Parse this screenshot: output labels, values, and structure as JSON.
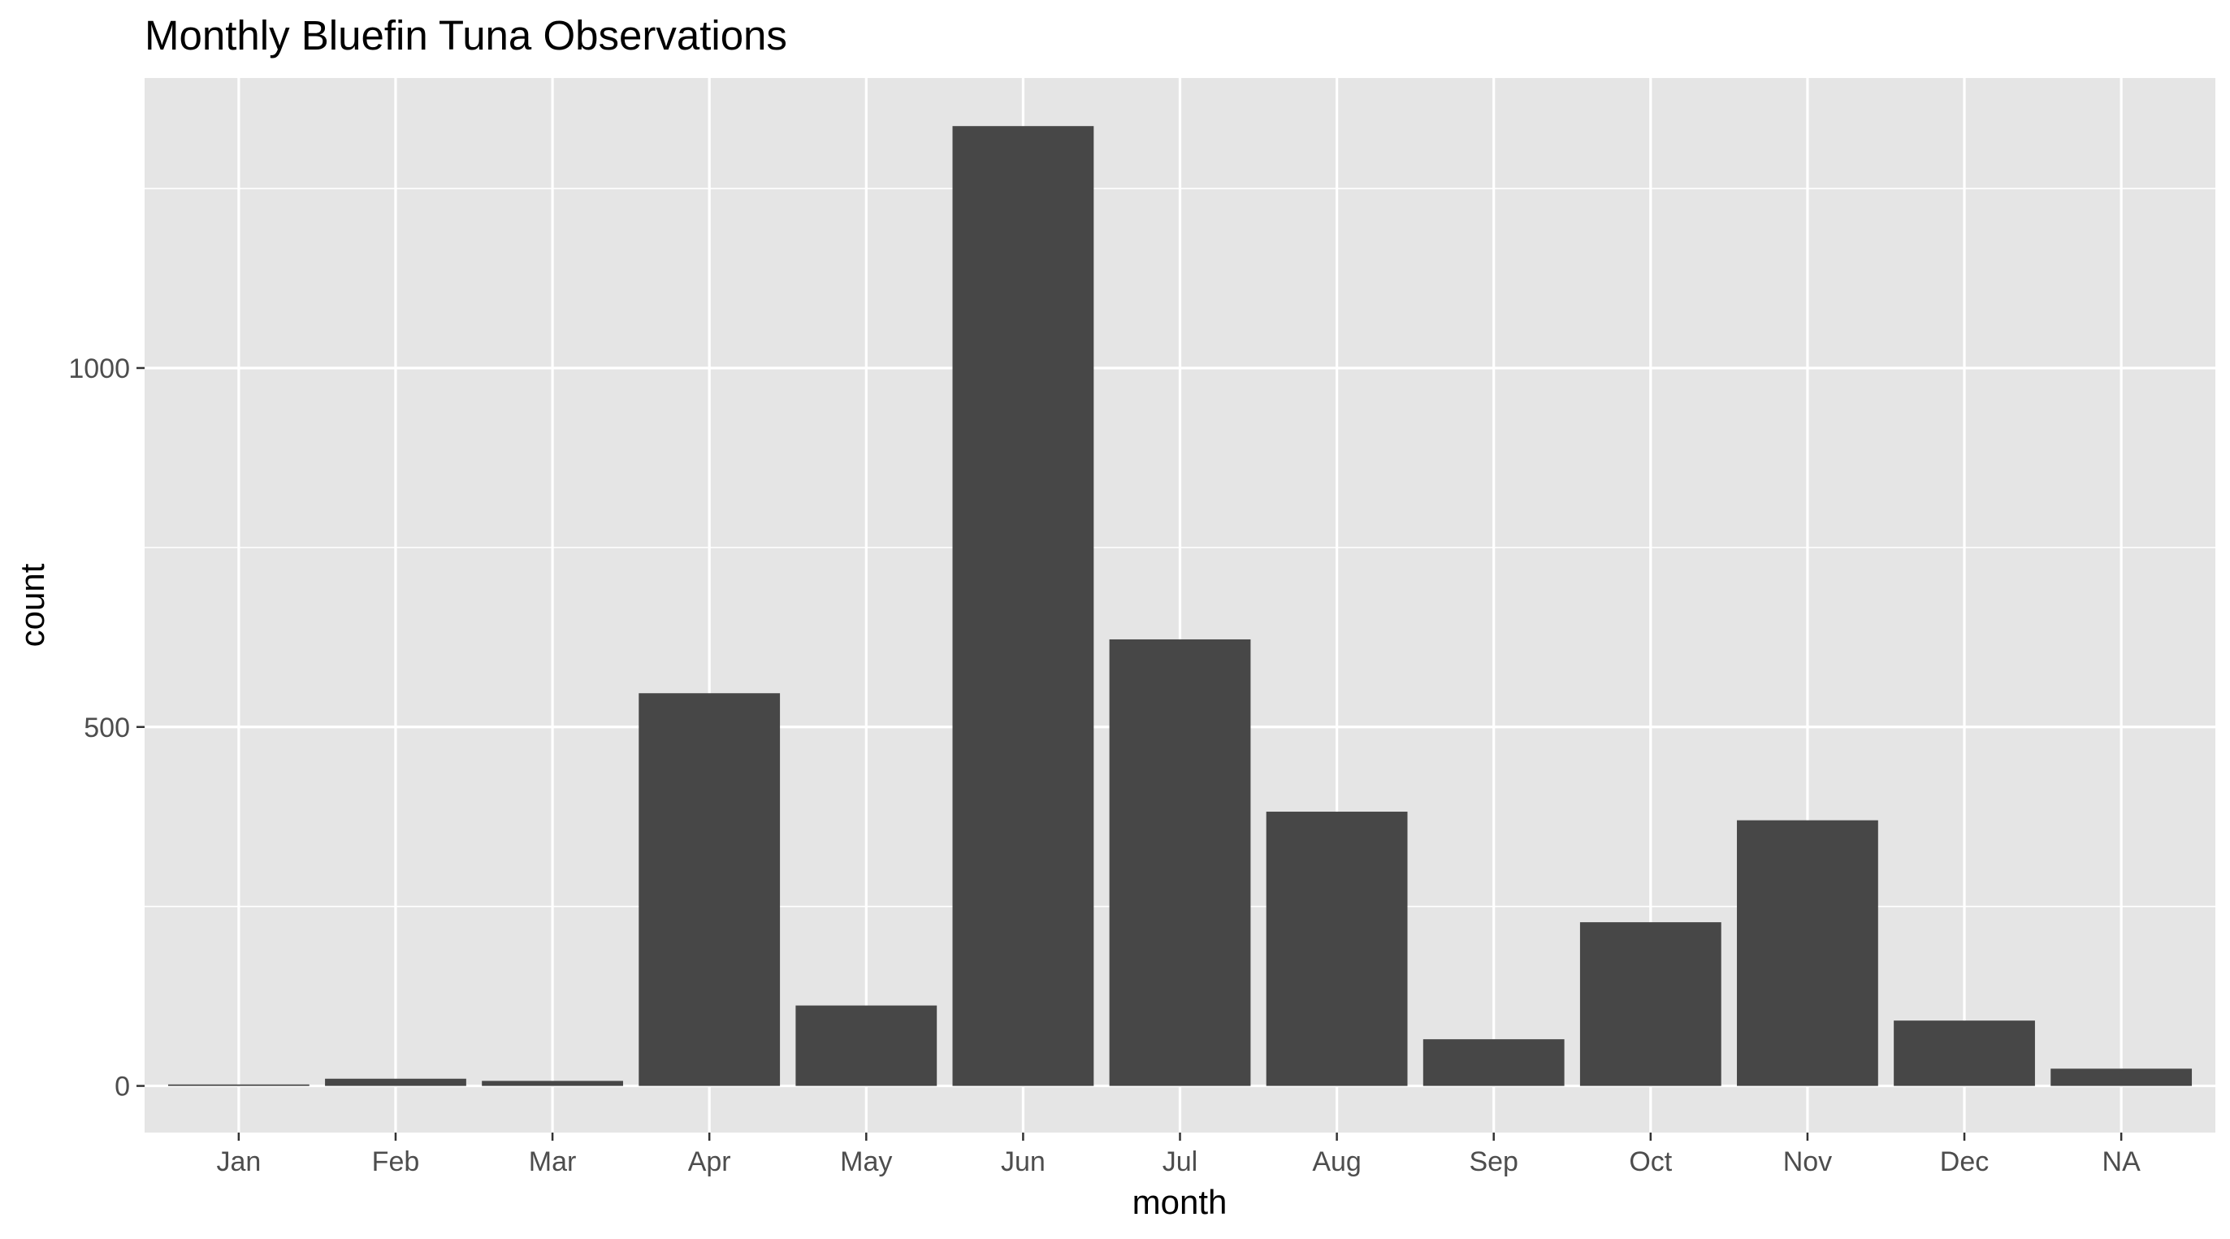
{
  "chart_data": {
    "type": "bar",
    "title": "Monthly Bluefin Tuna Observations",
    "xlabel": "month",
    "ylabel": "count",
    "categories": [
      "Jan",
      "Feb",
      "Mar",
      "Apr",
      "May",
      "Jun",
      "Jul",
      "Aug",
      "Sep",
      "Oct",
      "Nov",
      "Dec",
      "NA"
    ],
    "values": [
      2,
      10,
      7,
      547,
      112,
      1337,
      622,
      382,
      65,
      228,
      370,
      91,
      24
    ],
    "yticks": [
      0,
      500,
      1000
    ],
    "yticks_minor": [
      250,
      750,
      1250
    ],
    "ytick_labels": [
      "0",
      "500",
      "1000"
    ],
    "ylim": [
      -65,
      1404
    ],
    "grid": true,
    "legend": "none",
    "colors": {
      "bar": "#474747",
      "panel": "#e5e5e5",
      "grid": "#ffffff",
      "tick_text": "#4d4d4d",
      "tick_mark": "#333333"
    }
  }
}
